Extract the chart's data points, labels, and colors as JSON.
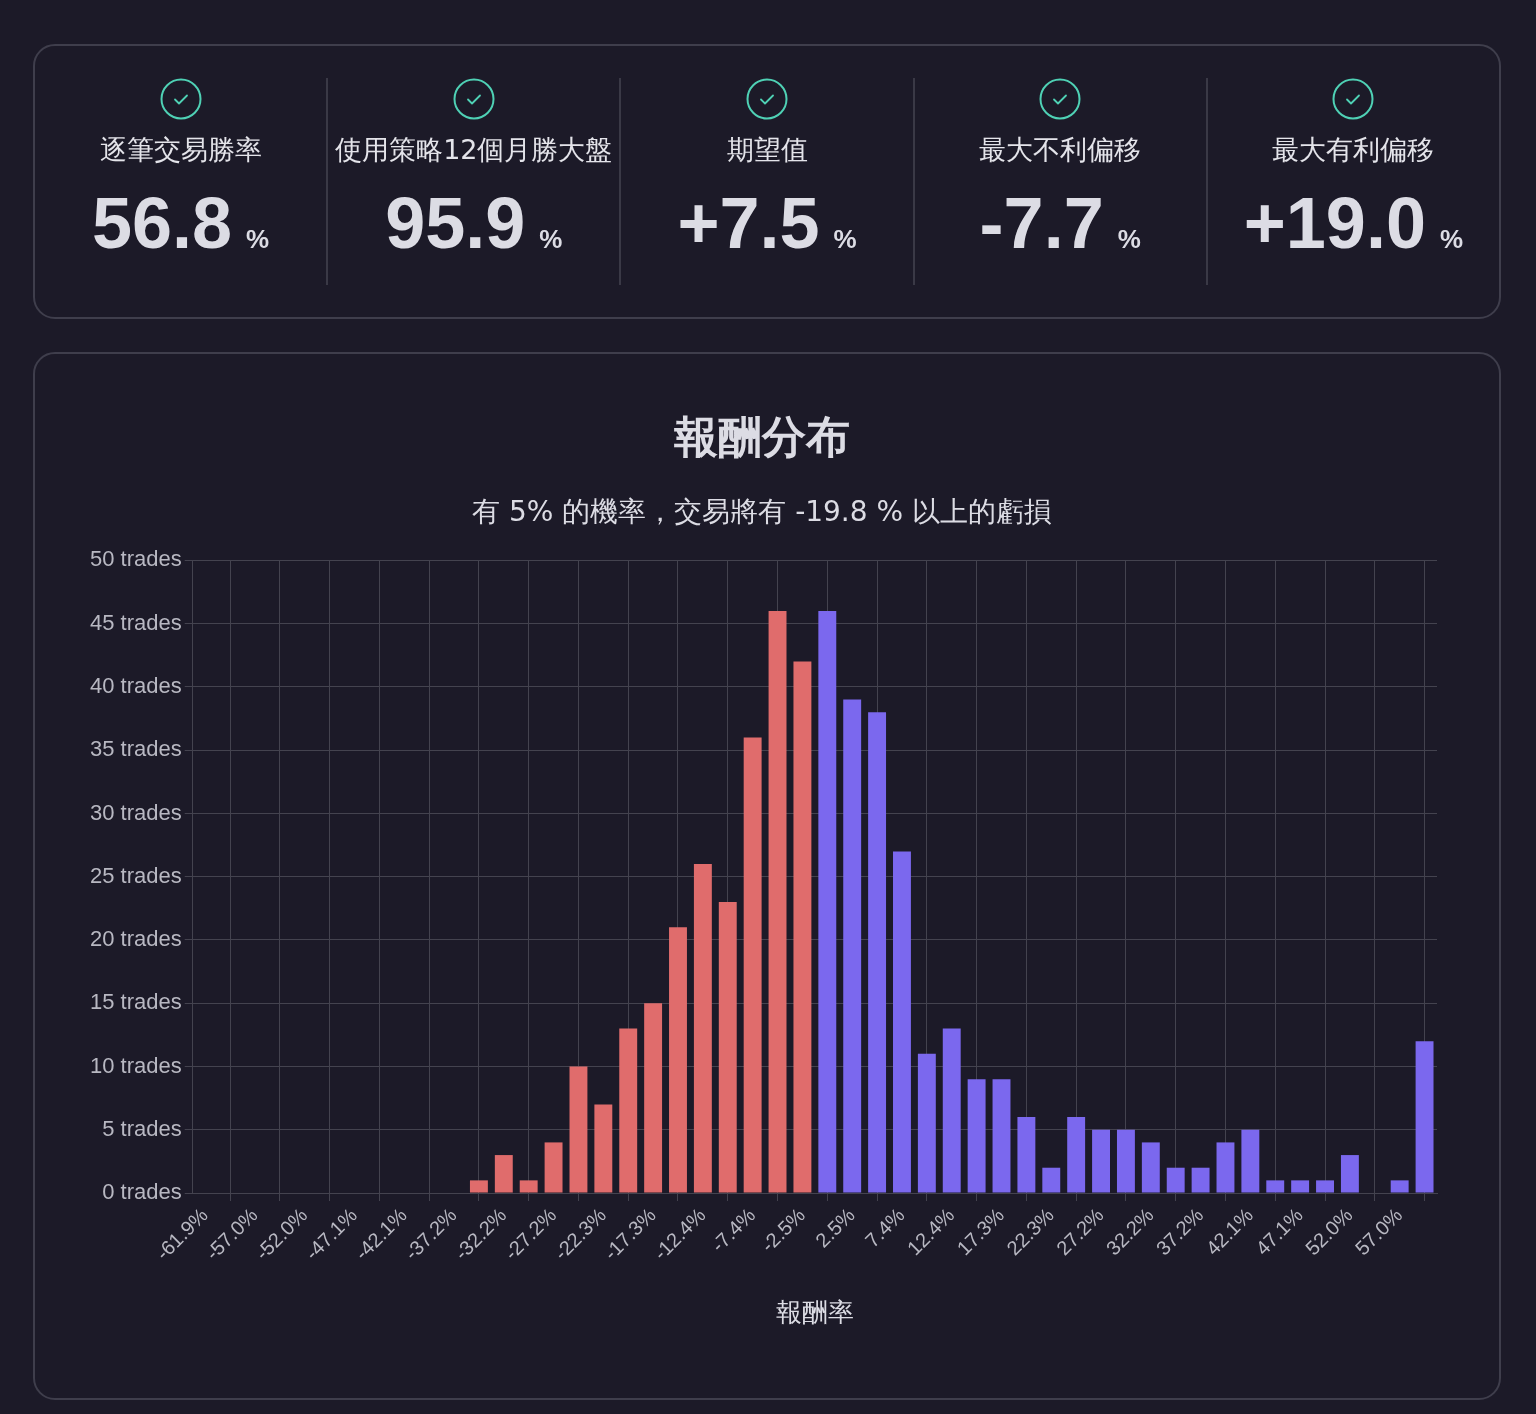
{
  "chart_data": [
    {
      "type": "other",
      "annotations": [
        "逐筆交易勝率",
        "56.8 %",
        "使用策略12個月勝大盤",
        "95.9 %",
        "期望值",
        "+7.5 %",
        "最大不利偏移",
        "-7.7 %",
        "最大有利偏移",
        "+19.0 %"
      ]
    },
    {
      "type": "bar",
      "title": "報酬分布",
      "subtitle": "有 5% 的機率，交易將有 -19.8 % 以上的虧損",
      "xlabel": "報酬率",
      "categories": [
        "-61.9%",
        null,
        "-57.0%",
        null,
        "-52.0%",
        null,
        "-47.1%",
        null,
        "-42.1%",
        null,
        "-37.2%",
        null,
        "-32.2%",
        null,
        "-27.2%",
        null,
        "-22.3%",
        null,
        "-17.3%",
        null,
        "-12.4%",
        null,
        "-7.4%",
        null,
        "-2.5%",
        null,
        "2.5%",
        null,
        "7.4%",
        null,
        "12.4%",
        null,
        "17.3%",
        null,
        "22.3%",
        null,
        "27.2%",
        null,
        "32.2%",
        null,
        "37.2%",
        null,
        "42.1%",
        null,
        "47.1%",
        null,
        "52.0%",
        null,
        "57.0%",
        null
      ],
      "values": [
        0,
        0,
        0,
        0,
        0,
        0,
        0,
        0,
        0,
        0,
        0,
        1,
        3,
        1,
        4,
        10,
        7,
        13,
        15,
        21,
        26,
        23,
        36,
        46,
        42,
        46,
        39,
        38,
        27,
        11,
        13,
        9,
        9,
        6,
        2,
        6,
        5,
        5,
        4,
        2,
        2,
        4,
        5,
        1,
        1,
        1,
        3,
        0,
        1,
        12
      ],
      "colors": [
        "#e06c6c",
        "#e06c6c",
        "#e06c6c",
        "#e06c6c",
        "#e06c6c",
        "#e06c6c",
        "#e06c6c",
        "#e06c6c",
        "#e06c6c",
        "#e06c6c",
        "#e06c6c",
        "#e06c6c",
        "#e06c6c",
        "#e06c6c",
        "#e06c6c",
        "#e06c6c",
        "#e06c6c",
        "#e06c6c",
        "#e06c6c",
        "#e06c6c",
        "#e06c6c",
        "#e06c6c",
        "#e06c6c",
        "#e06c6c",
        "#e06c6c",
        "#7b68ee",
        "#7b68ee",
        "#7b68ee",
        "#7b68ee",
        "#7b68ee",
        "#7b68ee",
        "#7b68ee",
        "#7b68ee",
        "#7b68ee",
        "#7b68ee",
        "#7b68ee",
        "#7b68ee",
        "#7b68ee",
        "#7b68ee",
        "#7b68ee",
        "#7b68ee",
        "#7b68ee",
        "#7b68ee",
        "#7b68ee",
        "#7b68ee",
        "#7b68ee",
        "#7b68ee",
        "#7b68ee",
        "#7b68ee",
        "#7b68ee"
      ],
      "ylim": [
        0,
        50
      ],
      "yticks": [
        {
          "value": 0,
          "label": "0 trades"
        },
        {
          "value": 5,
          "label": "5 trades"
        },
        {
          "value": 10,
          "label": "10 trades"
        },
        {
          "value": 15,
          "label": "15 trades"
        },
        {
          "value": 20,
          "label": "20 trades"
        },
        {
          "value": 25,
          "label": "25 trades"
        },
        {
          "value": 30,
          "label": "30 trades"
        },
        {
          "value": 35,
          "label": "35 trades"
        },
        {
          "value": 40,
          "label": "40 trades"
        },
        {
          "value": 45,
          "label": "45 trades"
        },
        {
          "value": 50,
          "label": "50 trades"
        }
      ],
      "grid": true,
      "legend": false
    }
  ]
}
